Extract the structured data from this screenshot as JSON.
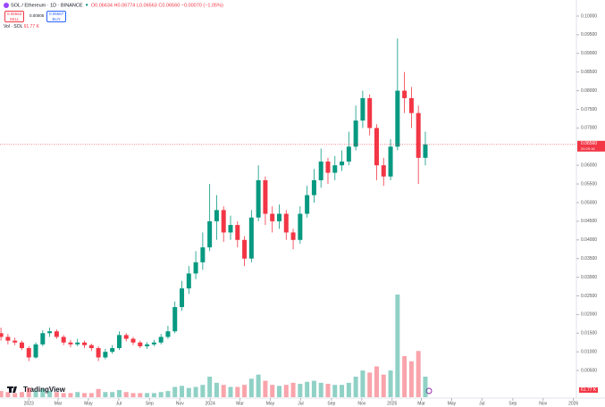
{
  "header": {
    "symbol": "SOL / Ethereum · 1D · BINANCE",
    "ohlc": "O0.06634 H0.06774 L0.06563 C0.06560 −0.00070 (−1.05%)",
    "sell_price": "0.06562",
    "sell_label": "SELL",
    "spread": "0.00005",
    "buy_price": "0.06567",
    "buy_label": "BUY",
    "volume_label": "Vol · SOL",
    "volume_value": "61.77 K",
    "logo": "TradingView"
  },
  "chart_data": {
    "type": "candlestick",
    "x": [
      -56,
      -42,
      -28,
      -14,
      0,
      14,
      28,
      42,
      56,
      70,
      84,
      98,
      112,
      126,
      140,
      154,
      168,
      182,
      196,
      210,
      224,
      238,
      252,
      266,
      280,
      294,
      308,
      322,
      336,
      350,
      364,
      378,
      392,
      406,
      420,
      434,
      448,
      462,
      476,
      490,
      504,
      518,
      532,
      546,
      560,
      574,
      588,
      602,
      616,
      630,
      644,
      658,
      672,
      686,
      700,
      714,
      728,
      742,
      756,
      770,
      784,
      798
    ],
    "open": [
      0.015,
      0.014,
      0.013,
      0.0125,
      0.011,
      0.0085,
      0.012,
      0.015,
      0.0155,
      0.014,
      0.0125,
      0.012,
      0.0125,
      0.0118,
      0.011,
      0.0085,
      0.01,
      0.011,
      0.0145,
      0.0135,
      0.0125,
      0.0115,
      0.012,
      0.0125,
      0.014,
      0.0155,
      0.022,
      0.027,
      0.031,
      0.034,
      0.038,
      0.045,
      0.048,
      0.042,
      0.044,
      0.04,
      0.035,
      0.046,
      0.056,
      0.047,
      0.045,
      0.047,
      0.042,
      0.04,
      0.047,
      0.052,
      0.056,
      0.061,
      0.058,
      0.06,
      0.061,
      0.065,
      0.072,
      0.078,
      0.07,
      0.06,
      0.057,
      0.065,
      0.08,
      0.078,
      0.074,
      0.062
    ],
    "high": [
      0.0165,
      0.0148,
      0.0138,
      0.013,
      0.0115,
      0.0125,
      0.0158,
      0.0165,
      0.016,
      0.0145,
      0.0132,
      0.0135,
      0.013,
      0.0122,
      0.0115,
      0.0108,
      0.0118,
      0.0155,
      0.015,
      0.014,
      0.013,
      0.0126,
      0.0132,
      0.0148,
      0.017,
      0.0235,
      0.029,
      0.033,
      0.037,
      0.042,
      0.055,
      0.052,
      0.049,
      0.0465,
      0.045,
      0.041,
      0.048,
      0.06,
      0.057,
      0.049,
      0.0495,
      0.048,
      0.043,
      0.049,
      0.0545,
      0.059,
      0.0645,
      0.062,
      0.0625,
      0.064,
      0.069,
      0.076,
      0.08,
      0.079,
      0.071,
      0.062,
      0.067,
      0.094,
      0.085,
      0.081,
      0.076,
      0.069
    ],
    "low": [
      0.013,
      0.012,
      0.0118,
      0.0105,
      0.0075,
      0.0082,
      0.0115,
      0.014,
      0.0135,
      0.0118,
      0.0112,
      0.0115,
      0.011,
      0.0102,
      0.0075,
      0.008,
      0.0095,
      0.0105,
      0.0128,
      0.0118,
      0.011,
      0.0108,
      0.0115,
      0.012,
      0.0135,
      0.015,
      0.021,
      0.0255,
      0.0295,
      0.032,
      0.037,
      0.04,
      0.0395,
      0.04,
      0.038,
      0.033,
      0.034,
      0.045,
      0.044,
      0.042,
      0.043,
      0.04,
      0.0375,
      0.039,
      0.046,
      0.05,
      0.054,
      0.055,
      0.056,
      0.0585,
      0.06,
      0.064,
      0.07,
      0.068,
      0.056,
      0.0545,
      0.056,
      0.064,
      0.074,
      0.07,
      0.055,
      0.06
    ],
    "close": [
      0.014,
      0.013,
      0.0125,
      0.011,
      0.0085,
      0.012,
      0.015,
      0.0155,
      0.014,
      0.0125,
      0.012,
      0.0125,
      0.0118,
      0.011,
      0.0085,
      0.01,
      0.011,
      0.0145,
      0.0135,
      0.0125,
      0.0115,
      0.012,
      0.0125,
      0.014,
      0.0155,
      0.022,
      0.027,
      0.031,
      0.034,
      0.038,
      0.045,
      0.048,
      0.042,
      0.044,
      0.04,
      0.035,
      0.046,
      0.056,
      0.047,
      0.045,
      0.047,
      0.042,
      0.04,
      0.047,
      0.052,
      0.056,
      0.061,
      0.058,
      0.06,
      0.061,
      0.065,
      0.072,
      0.078,
      0.07,
      0.06,
      0.057,
      0.065,
      0.08,
      0.078,
      0.074,
      0.062,
      0.0656
    ],
    "volume": [
      6,
      5,
      4,
      5,
      9,
      6,
      8,
      6,
      5,
      4,
      4,
      5,
      4,
      4,
      8,
      5,
      5,
      7,
      5,
      4,
      4,
      4,
      4,
      5,
      6,
      10,
      11,
      9,
      10,
      12,
      20,
      14,
      12,
      10,
      10,
      12,
      18,
      22,
      16,
      12,
      11,
      12,
      14,
      13,
      15,
      16,
      14,
      13,
      12,
      12,
      14,
      20,
      26,
      24,
      30,
      22,
      26,
      100,
      40,
      35,
      45,
      20
    ],
    "vlim": [
      0,
      100
    ],
    "up_color": "#089981",
    "down_color": "#f23645",
    "xlim": [
      -58,
      1102
    ],
    "xticks": [
      {
        "value": 0,
        "label": "2023"
      },
      {
        "value": 59,
        "label": "Mar"
      },
      {
        "value": 120,
        "label": "May"
      },
      {
        "value": 181,
        "label": "Jul"
      },
      {
        "value": 243,
        "label": "Sep"
      },
      {
        "value": 304,
        "label": "Nov"
      },
      {
        "value": 365,
        "label": "2024"
      },
      {
        "value": 425,
        "label": "Mar"
      },
      {
        "value": 486,
        "label": "May"
      },
      {
        "value": 547,
        "label": "Jul"
      },
      {
        "value": 609,
        "label": "Sep"
      },
      {
        "value": 670,
        "label": "Nov"
      },
      {
        "value": 731,
        "label": "2025"
      },
      {
        "value": 790,
        "label": "Mar"
      },
      {
        "value": 851,
        "label": "May"
      },
      {
        "value": 912,
        "label": "Jul"
      },
      {
        "value": 974,
        "label": "Sep"
      },
      {
        "value": 1035,
        "label": "Nov"
      },
      {
        "value": 1096,
        "label": "2026"
      }
    ],
    "ylim": [
      0,
      0.1
    ],
    "yticks": [
      {
        "value": 0.005,
        "label": "0.00500"
      },
      {
        "value": 0.01,
        "label": "0.01000"
      },
      {
        "value": 0.015,
        "label": "0.01500"
      },
      {
        "value": 0.02,
        "label": "0.02000"
      },
      {
        "value": 0.025,
        "label": "0.02500"
      },
      {
        "value": 0.03,
        "label": "0.03000"
      },
      {
        "value": 0.035,
        "label": "0.03500"
      },
      {
        "value": 0.04,
        "label": "0.04000"
      },
      {
        "value": 0.045,
        "label": "0.04500"
      },
      {
        "value": 0.05,
        "label": "0.05000"
      },
      {
        "value": 0.055,
        "label": "0.05500"
      },
      {
        "value": 0.06,
        "label": "0.06000"
      },
      {
        "value": 0.07,
        "label": "0.07000"
      },
      {
        "value": 0.075,
        "label": "0.07500"
      },
      {
        "value": 0.08,
        "label": "0.08000"
      },
      {
        "value": 0.085,
        "label": "0.08500"
      },
      {
        "value": 0.09,
        "label": "0.09000"
      },
      {
        "value": 0.095,
        "label": "0.09500"
      },
      {
        "value": 0.1,
        "label": "0.10000"
      }
    ],
    "last_price": {
      "value": 0.0656,
      "label": "0.06560"
    },
    "countdown": "20:29:16",
    "grid": false
  }
}
